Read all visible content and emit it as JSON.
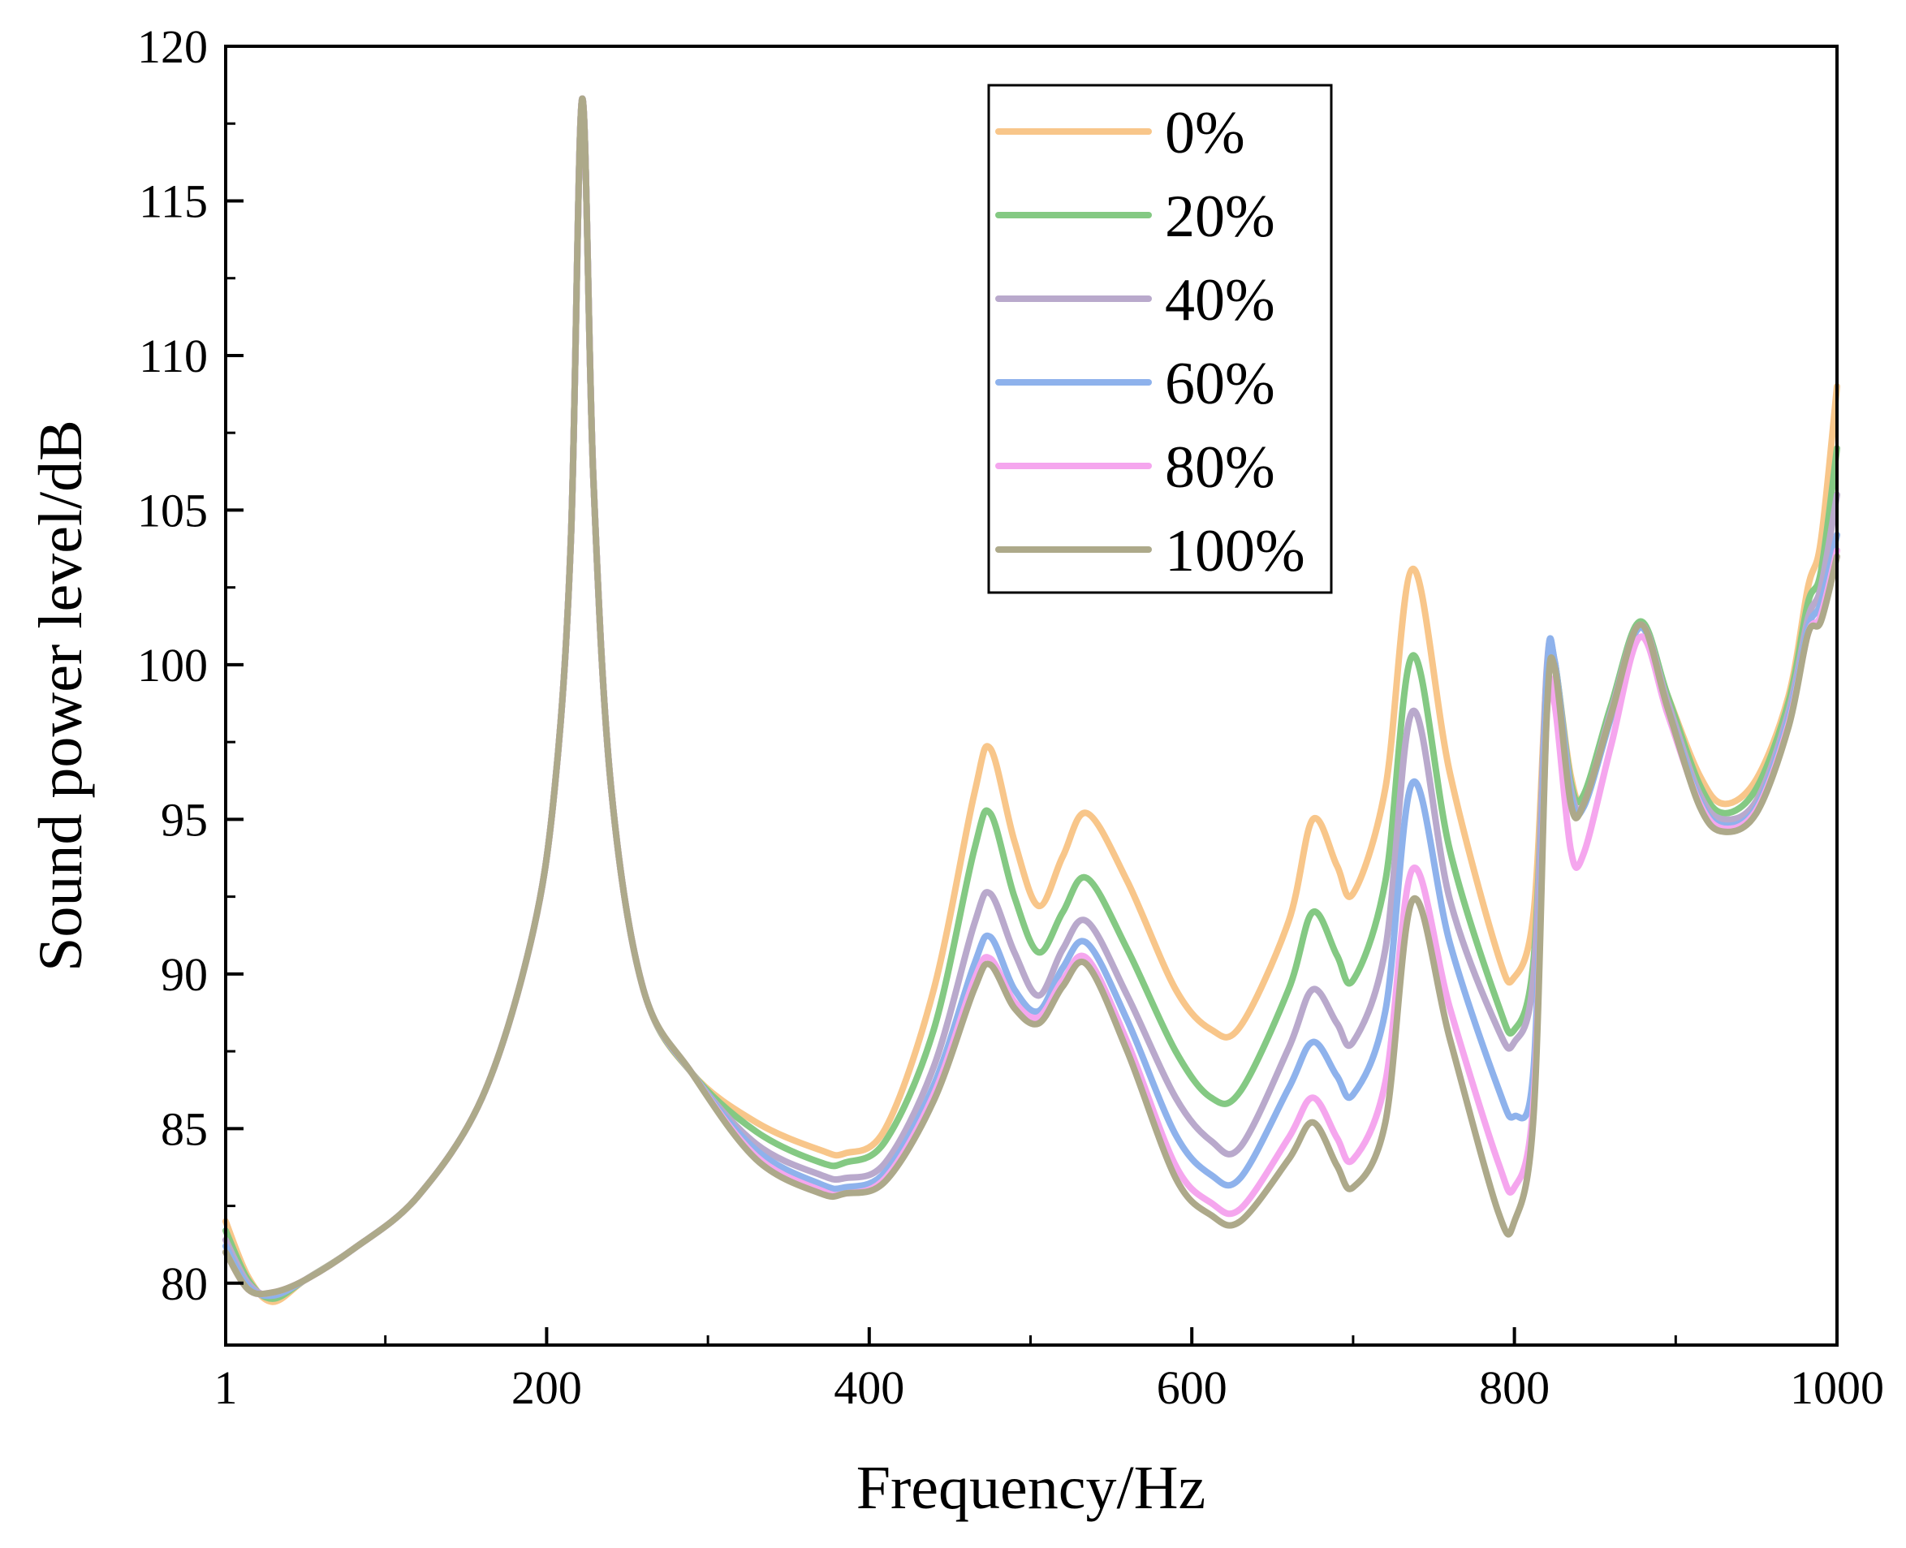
{
  "chart_data": {
    "type": "line",
    "title": "",
    "xlabel": "Frequency/Hz",
    "ylabel": "Sound power level/dB",
    "xlim": [
      1,
      1000
    ],
    "ylim": [
      78,
      120
    ],
    "x_ticks": [
      1,
      200,
      400,
      600,
      800,
      1000
    ],
    "x_tick_labels": [
      "1",
      "200",
      "400",
      "600",
      "800",
      "1000"
    ],
    "y_ticks": [
      80,
      85,
      90,
      95,
      100,
      105,
      110,
      115,
      120
    ],
    "y_tick_labels": [
      "80",
      "85",
      "90",
      "95",
      "100",
      "105",
      "110",
      "115",
      "120"
    ],
    "legend_position": "top-center",
    "x": [
      1,
      15,
      30,
      50,
      80,
      120,
      160,
      190,
      205,
      215,
      222,
      229,
      240,
      260,
      290,
      330,
      370,
      385,
      410,
      440,
      465,
      475,
      490,
      505,
      520,
      535,
      560,
      590,
      612,
      630,
      660,
      675,
      690,
      700,
      720,
      737,
      760,
      790,
      800,
      812,
      820,
      825,
      835,
      843,
      860,
      878,
      895,
      915,
      930,
      950,
      970,
      982,
      990,
      1000
    ],
    "series": [
      {
        "name": "0%",
        "color": "#f8c68a",
        "values": [
          82.0,
          80.2,
          79.4,
          80.1,
          81.1,
          82.8,
          86.0,
          91.0,
          96.0,
          104.0,
          118.3,
          106.0,
          96.0,
          89.5,
          86.8,
          85.2,
          84.3,
          84.2,
          85.0,
          89.5,
          95.8,
          97.3,
          94.3,
          92.2,
          93.8,
          95.2,
          93.0,
          89.5,
          88.2,
          88.3,
          91.7,
          95.0,
          93.5,
          92.6,
          96.0,
          103.1,
          96.5,
          90.6,
          89.9,
          92.0,
          99.6,
          100.0,
          96.4,
          95.7,
          98.6,
          101.3,
          99.0,
          96.4,
          95.5,
          96.3,
          99.0,
          102.5,
          104.0,
          109.0
        ]
      },
      {
        "name": "20%",
        "color": "#84c983",
        "values": [
          81.7,
          80.1,
          79.5,
          80.1,
          81.1,
          82.8,
          86.0,
          91.0,
          96.0,
          104.0,
          118.3,
          106.0,
          96.0,
          89.5,
          86.8,
          84.9,
          83.9,
          83.9,
          84.6,
          88.2,
          94.0,
          95.2,
          92.5,
          90.7,
          92.0,
          93.1,
          90.8,
          87.5,
          86.0,
          86.2,
          89.5,
          92.0,
          90.6,
          89.8,
          93.0,
          100.3,
          94.0,
          89.0,
          88.2,
          90.5,
          99.6,
          100.1,
          96.2,
          95.8,
          98.7,
          101.4,
          99.0,
          96.1,
          95.2,
          96.0,
          98.8,
          102.0,
          103.0,
          107.0
        ]
      },
      {
        "name": "40%",
        "color": "#b9a9cc",
        "values": [
          81.4,
          80.0,
          79.6,
          80.1,
          81.1,
          82.8,
          86.0,
          91.0,
          96.0,
          104.0,
          118.3,
          106.0,
          96.0,
          89.5,
          86.8,
          84.5,
          83.5,
          83.4,
          83.9,
          87.0,
          91.6,
          92.6,
          90.7,
          89.3,
          90.8,
          91.7,
          89.3,
          86.0,
          84.6,
          84.4,
          87.6,
          89.5,
          88.4,
          87.8,
          90.8,
          98.5,
          92.4,
          88.2,
          87.8,
          90.0,
          99.8,
          100.1,
          96.0,
          95.5,
          98.5,
          101.3,
          98.8,
          95.8,
          95.0,
          95.6,
          98.5,
          101.5,
          102.5,
          105.5
        ]
      },
      {
        "name": "60%",
        "color": "#8eb2ec",
        "values": [
          81.2,
          79.9,
          79.6,
          80.1,
          81.1,
          82.8,
          86.0,
          91.0,
          96.0,
          104.0,
          118.3,
          106.0,
          96.0,
          89.5,
          86.8,
          84.3,
          83.2,
          83.1,
          83.6,
          86.4,
          90.3,
          91.2,
          89.5,
          88.8,
          90.2,
          91.0,
          88.5,
          84.8,
          83.5,
          83.4,
          86.3,
          87.8,
          86.7,
          86.1,
          88.8,
          96.2,
          91.0,
          86.3,
          85.4,
          87.0,
          99.5,
          100.1,
          95.8,
          95.4,
          98.3,
          101.2,
          98.6,
          95.6,
          94.8,
          95.4,
          98.3,
          101.2,
          102.0,
          104.2
        ]
      },
      {
        "name": "80%",
        "color": "#f5a6ee",
        "values": [
          81.0,
          79.8,
          79.7,
          80.1,
          81.1,
          82.8,
          86.0,
          91.0,
          96.0,
          104.0,
          118.3,
          106.0,
          96.0,
          89.5,
          86.8,
          84.1,
          83.0,
          82.9,
          83.4,
          86.1,
          89.8,
          90.5,
          89.1,
          88.6,
          89.8,
          90.5,
          87.8,
          83.8,
          82.6,
          82.4,
          84.7,
          86.0,
          84.7,
          84.0,
          86.5,
          93.4,
          88.9,
          83.9,
          83.1,
          86.0,
          98.3,
          98.7,
          94.0,
          93.9,
          97.4,
          100.9,
          98.4,
          95.5,
          94.7,
          95.3,
          98.1,
          101.0,
          101.6,
          103.7
        ]
      },
      {
        "name": "100%",
        "color": "#ada98a",
        "values": [
          81.0,
          79.8,
          79.7,
          80.1,
          81.1,
          82.8,
          86.0,
          91.0,
          96.0,
          104.0,
          118.3,
          106.0,
          96.0,
          89.5,
          86.8,
          84.0,
          82.9,
          82.9,
          83.3,
          85.9,
          89.5,
          90.3,
          88.9,
          88.4,
          89.6,
          90.3,
          87.5,
          83.4,
          82.2,
          82.0,
          84.0,
          85.2,
          83.8,
          83.1,
          85.2,
          92.4,
          87.9,
          82.3,
          82.0,
          85.5,
          98.3,
          99.9,
          95.5,
          95.5,
          98.4,
          101.3,
          98.6,
          95.4,
          94.6,
          95.2,
          98.0,
          101.0,
          101.4,
          103.5
        ]
      }
    ]
  }
}
